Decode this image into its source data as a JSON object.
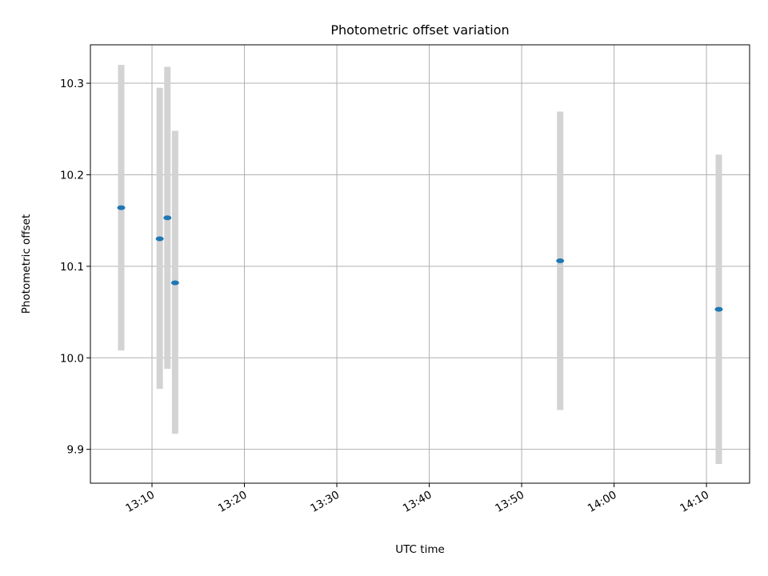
{
  "chart_data": {
    "type": "scatter",
    "title": "Photometric offset variation",
    "xlabel": "UTC time",
    "ylabel": "Photometric offset",
    "xlim": [
      "13:03:20",
      "14:14:40"
    ],
    "ylim": [
      9.863,
      10.342
    ],
    "grid": true,
    "x_ticks": [
      "13:10",
      "13:20",
      "13:30",
      "13:40",
      "13:50",
      "14:00",
      "14:10"
    ],
    "y_ticks": [
      9.9,
      10.0,
      10.1,
      10.2,
      10.3
    ],
    "series": [
      {
        "points": [
          {
            "time": "13:06:40",
            "value": 10.164,
            "err_low": 10.008,
            "err_high": 10.32
          },
          {
            "time": "13:10:50",
            "value": 10.13,
            "err_low": 9.966,
            "err_high": 10.295
          },
          {
            "time": "13:11:40",
            "value": 10.153,
            "err_low": 9.988,
            "err_high": 10.318
          },
          {
            "time": "13:12:30",
            "value": 10.082,
            "err_low": 9.917,
            "err_high": 10.248
          },
          {
            "time": "13:54:10",
            "value": 10.106,
            "err_low": 9.943,
            "err_high": 10.269
          },
          {
            "time": "14:11:20",
            "value": 10.053,
            "err_low": 9.884,
            "err_high": 10.222
          }
        ]
      }
    ],
    "colors": {
      "marker": "#1f77b4",
      "errorbar": "#d3d3d3",
      "grid": "#b0b0b0"
    }
  }
}
